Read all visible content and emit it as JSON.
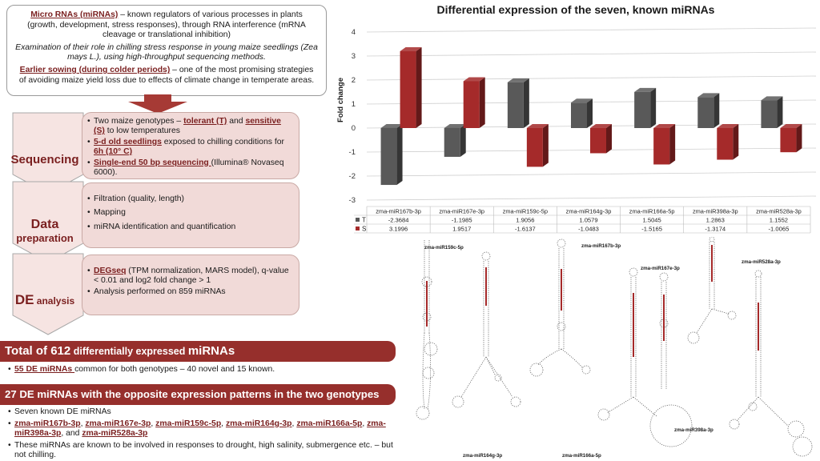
{
  "intro": {
    "p1_lead": "Micro RNAs (miRNAs)",
    "p1_rest": " – known regulators of various processes in plants (growth, development, stress responses), through RNA interference (mRNA cleavage or translational inhibition)",
    "p2": "Examination of their role in chilling stress response in young maize seedlings (Zea mays L.), using high-throughput sequencing methods.",
    "p3_lead": "Earlier sowing (during colder periods)",
    "p3_rest": " – one of the most promising strategies of avoiding maize yield loss due to effects of climate change in temperate areas."
  },
  "steps": {
    "sequencing": {
      "label": "Sequencing",
      "b1_a": "Two maize genotypes – ",
      "b1_t": "tolerant (T)",
      "b1_and": " and ",
      "b1_s": "sensitive (S)",
      "b1_b": " to low temperatures",
      "b2_hl": "5-d old seedlings",
      "b2_mid": " exposed to chilling conditions for ",
      "b2_hl2": "6h (10° C)",
      "b3_hl": "Single-end 50 bp sequencing ",
      "b3_rest": "(Illumina® Novaseq 6000)."
    },
    "data_prep": {
      "label_1": "Data",
      "label_2": "preparation",
      "items": [
        "Filtration (quality, length)",
        "Mapping",
        "miRNA identification and quantification"
      ]
    },
    "de_analysis": {
      "label_1": "DE",
      "label_2": " analysis",
      "b1_hl": "DEGseq",
      "b1_rest": " (TPM normalization, MARS model), q-value < 0.01 and log2 fold change > 1",
      "b2": "Analysis performed on 859 miRNAs"
    }
  },
  "results": {
    "banner1_a": "Total of 612",
    "banner1_b": " differentially expressed ",
    "banner1_c": "miRNAs",
    "r1_hl": "55 DE miRNAs ",
    "r1_rest": "common for both genotypes – 40 novel and 15 known.",
    "banner2": "27 DE miRNAs with the opposite expression patterns in the two genotypes",
    "r2": "Seven known DE miRNAs",
    "r3_parts": [
      "zma-miR167b-3p",
      ", ",
      "zma-miR167e-3p",
      ", ",
      "zma-miR159c-5p",
      ", ",
      "zma-miR164g-3p",
      ", ",
      "zma-miR166a-5p",
      ", ",
      "zma-miR398a-3p",
      ", and ",
      "zma-miR528a-3p"
    ],
    "r4": "These miRNAs are known to be involved in responses to drought, high salinity, submergence etc. – but not chilling."
  },
  "chart_data": {
    "type": "bar",
    "title": "Differential expression of the seven, known miRNAs",
    "ylabel": "Fold change",
    "ylim": [
      -3,
      4
    ],
    "yticks": [
      -3,
      -2,
      -1,
      0,
      1,
      2,
      3,
      4
    ],
    "categories": [
      "zma-miR167b-3p",
      "zma-miR167e-3p",
      "zma-miR159c-5p",
      "zma-miR164g-3p",
      "zma-miR166a-5p",
      "zma-miR398a-3p",
      "zma-miR528a-3p"
    ],
    "series": [
      {
        "name": "T",
        "color": "#595959",
        "values": [
          -2.3684,
          -1.1985,
          1.9056,
          1.0579,
          1.5045,
          1.2863,
          1.1552
        ],
        "labels": [
          "-2.3684",
          "-1.1985",
          "1.9056",
          "1.0579",
          "1.5045",
          "1.2863",
          "1.1552"
        ]
      },
      {
        "name": "S",
        "color": "#a52a2a",
        "values": [
          3.1996,
          1.9517,
          -1.6137,
          -1.0483,
          -1.5165,
          -1.3174,
          -1.0065
        ],
        "labels": [
          "3.1996",
          "1.9517",
          "-1.6137",
          "-1.0483",
          "-1.5165",
          "-1.3174",
          "-1.0065"
        ]
      }
    ],
    "grid": true,
    "legend": "data-table"
  },
  "hairpins": {
    "labels": [
      "zma-miR159c-5p",
      "zma-miR167b-3p",
      "zma-miR167e-3p",
      "zma-miR528a-3p",
      "zma-miR398a-3p",
      "zma-miR164g-3p",
      "zma-miR166a-5p"
    ]
  }
}
